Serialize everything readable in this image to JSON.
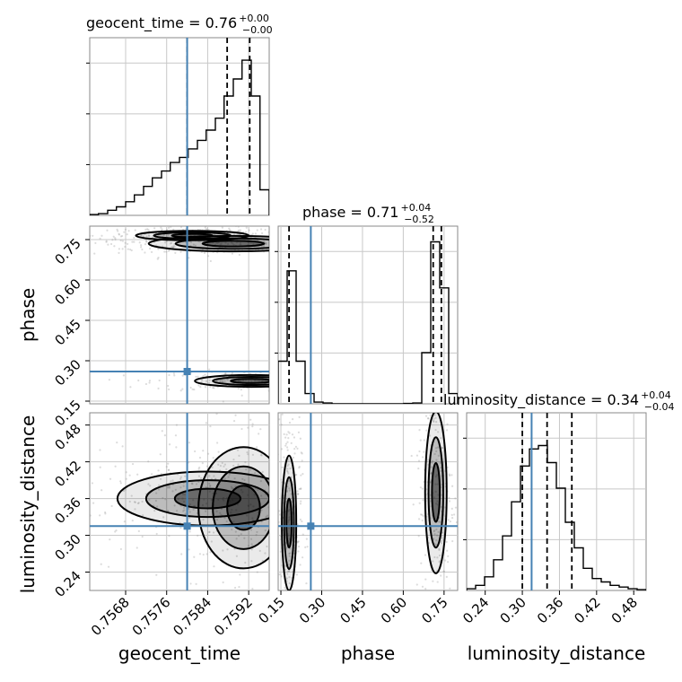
{
  "chart_data": {
    "type": "corner",
    "parameters": [
      "geocent_time",
      "phase",
      "luminosity_distance"
    ],
    "axis_labels": {
      "geocent_time": "geocent_time",
      "phase": "phase",
      "luminosity_distance": "luminosity_distance"
    },
    "ranges": {
      "geocent_time": [
        0.7561,
        0.7596
      ],
      "phase": [
        0.14,
        0.8
      ],
      "luminosity_distance": [
        0.21,
        0.5
      ]
    },
    "ticks": {
      "geocent_time": [
        "0.7568",
        "0.7576",
        "0.7584",
        "0.7592"
      ],
      "phase": [
        "0.15",
        "0.30",
        "0.45",
        "0.60",
        "0.75"
      ],
      "luminosity_distance": [
        "0.24",
        "0.30",
        "0.36",
        "0.42",
        "0.48"
      ]
    },
    "titles": {
      "geocent_time": {
        "label": "geocent_time",
        "value": "0.76",
        "plus": "+0.00",
        "minus": "−0.00"
      },
      "phase": {
        "label": "phase",
        "value": "0.71",
        "plus": "+0.04",
        "minus": "−0.52"
      },
      "luminosity_distance": {
        "label": "luminosity_distance",
        "value": "0.34",
        "plus": "+0.04",
        "minus": "−0.04"
      }
    },
    "truths": {
      "geocent_time": 0.758,
      "phase": 0.26,
      "luminosity_distance": 0.315
    },
    "quantiles": {
      "geocent_time": [
        0.758,
        0.75878,
        0.75922
      ],
      "phase": [
        0.18,
        0.71,
        0.74
      ],
      "luminosity_distance": [
        0.3,
        0.34,
        0.38
      ]
    },
    "histograms": {
      "geocent_time": {
        "edges": [
          0.7561,
          0.75627,
          0.75645,
          0.75662,
          0.7568,
          0.75697,
          0.75715,
          0.75732,
          0.7575,
          0.75767,
          0.75785,
          0.75802,
          0.7582,
          0.75837,
          0.75855,
          0.75872,
          0.7589,
          0.75907,
          0.75925,
          0.75942,
          0.7596
        ],
        "counts": [
          0.005,
          0.01,
          0.03,
          0.05,
          0.08,
          0.12,
          0.17,
          0.22,
          0.26,
          0.31,
          0.34,
          0.39,
          0.44,
          0.5,
          0.57,
          0.7,
          0.8,
          0.91,
          0.7,
          0.15
        ]
      },
      "phase": {
        "edges": [
          0.14,
          0.173,
          0.206,
          0.239,
          0.272,
          0.305,
          0.338,
          0.371,
          0.404,
          0.437,
          0.47,
          0.503,
          0.536,
          0.569,
          0.602,
          0.635,
          0.668,
          0.701,
          0.734,
          0.767,
          0.8
        ],
        "counts": [
          0.25,
          0.78,
          0.25,
          0.06,
          0.01,
          0.005,
          0,
          0,
          0,
          0,
          0,
          0,
          0,
          0,
          0.002,
          0.005,
          0.3,
          0.95,
          0.68,
          0.06
        ]
      },
      "luminosity_distance": {
        "edges": [
          0.21,
          0.2245,
          0.239,
          0.2535,
          0.268,
          0.2825,
          0.297,
          0.3115,
          0.326,
          0.3405,
          0.355,
          0.3695,
          0.384,
          0.3985,
          0.413,
          0.4275,
          0.442,
          0.4565,
          0.471,
          0.4855,
          0.5
        ],
        "counts": [
          0.01,
          0.03,
          0.08,
          0.18,
          0.32,
          0.52,
          0.73,
          0.83,
          0.85,
          0.75,
          0.6,
          0.4,
          0.25,
          0.13,
          0.07,
          0.05,
          0.03,
          0.02,
          0.01,
          0.005
        ]
      }
    },
    "contours": {
      "phase_vs_geocent_time": {
        "modes": [
          {
            "cx": 0.7589,
            "cy": 0.735,
            "sx": 0.00075,
            "sy": 0.013
          },
          {
            "cx": 0.7581,
            "cy": 0.765,
            "sx": 0.0005,
            "sy": 0.008
          },
          {
            "cx": 0.75925,
            "cy": 0.225,
            "sx": 0.0005,
            "sy": 0.01
          }
        ]
      },
      "luminosity_distance_vs_geocent_time": {
        "modes": [
          {
            "cx": 0.7591,
            "cy": 0.345,
            "sx": 0.0004,
            "sy": 0.045
          },
          {
            "cx": 0.7584,
            "cy": 0.36,
            "sx": 0.0008,
            "sy": 0.02
          }
        ]
      },
      "luminosity_distance_vs_phase": {
        "modes": [
          {
            "cx": 0.18,
            "cy": 0.32,
            "sx": 0.012,
            "sy": 0.05
          },
          {
            "cx": 0.72,
            "cy": 0.37,
            "sx": 0.018,
            "sy": 0.06
          }
        ]
      }
    },
    "grid": true
  },
  "colors": {
    "truth": "#4682b4",
    "line": "#000000",
    "grid": "#c8c8c8",
    "scatter": "#9a9a9a"
  }
}
